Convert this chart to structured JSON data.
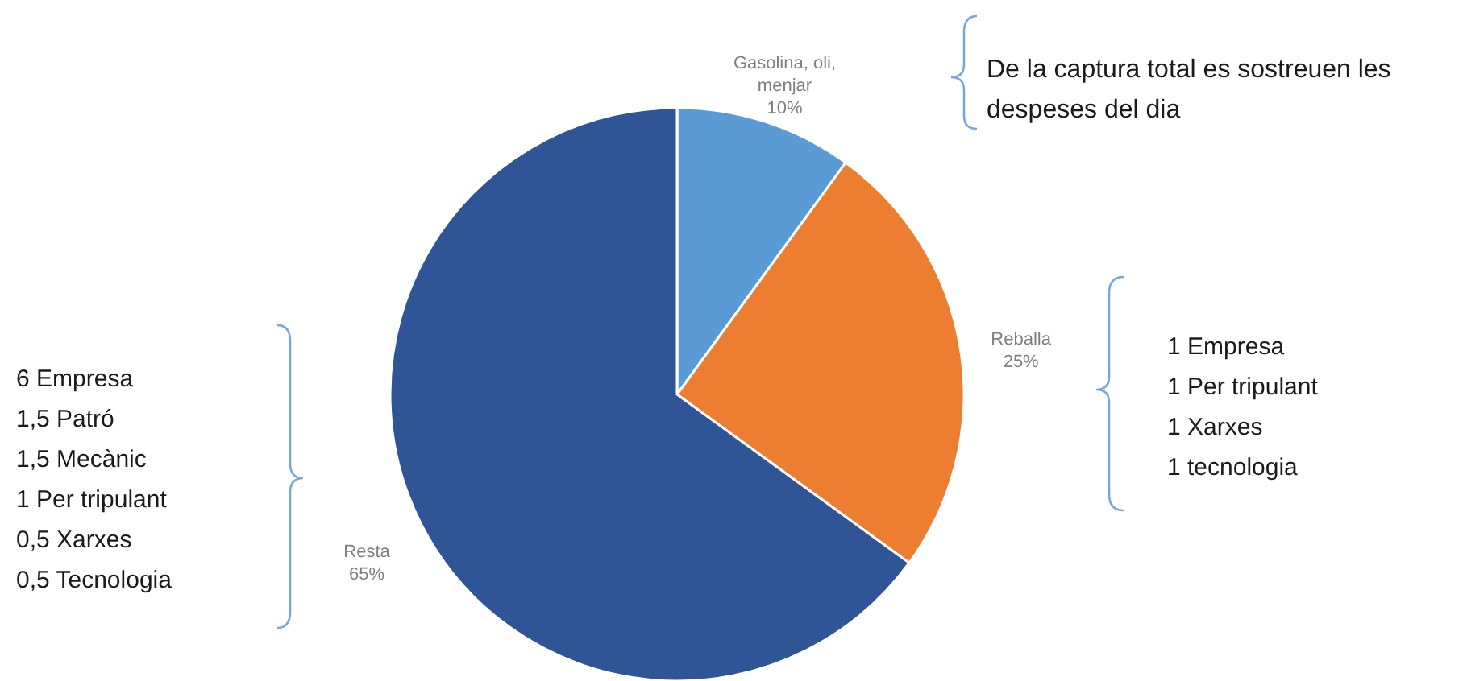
{
  "chart_data": {
    "type": "pie",
    "categories": [
      "Gasolina, oli, menjar",
      "Reballa",
      "Resta"
    ],
    "values": [
      10,
      25,
      65
    ],
    "value_labels": [
      "10%",
      "25%",
      "65%"
    ],
    "colors": [
      "#5b9bd5",
      "#ed7d31",
      "#2f5597"
    ],
    "annotations": [
      "De la captura total es sostreuen les despeses del dia",
      "1 Empresa\n1 Per tripulant\n1 Xarxes\n1 tecnologia",
      "6 Empresa\n1,5 Patró\n1,5 Mecànic\n1 Per tripulant\n0,5 Xarxes\n0,5 Tecnologia"
    ]
  }
}
